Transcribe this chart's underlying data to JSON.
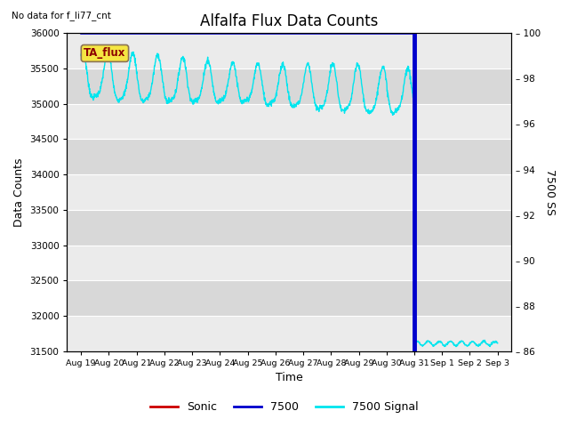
{
  "title": "Alfalfa Flux Data Counts",
  "top_left_text": "No data for f_li77_cnt",
  "ylabel_left": "Data Counts",
  "ylabel_right": "7500 SS",
  "xlabel": "Time",
  "annotation_box": "TA_flux",
  "ylim_left": [
    31500,
    36000
  ],
  "ylim_right": [
    86,
    100
  ],
  "yticks_left": [
    31500,
    32000,
    32500,
    33000,
    33500,
    34000,
    34500,
    35000,
    35500,
    36000
  ],
  "yticks_right": [
    86,
    88,
    90,
    92,
    94,
    96,
    98,
    100
  ],
  "plot_bg_color": "#e0e0e0",
  "line_7500_color": "#0000cc",
  "line_signal_color": "#00e5ee",
  "line_sonic_color": "#cc0000",
  "x_tick_labels": [
    "Aug 19",
    "Aug 20",
    "Aug 21",
    "Aug 22",
    "Aug 23",
    "Aug 24",
    "Aug 25",
    "Aug 26",
    "Aug 27",
    "Aug 28",
    "Aug 29",
    "Aug 30",
    "Aug 31",
    "Sep 1",
    "Sep 2",
    "Sep 3"
  ],
  "legend_entries": [
    "Sonic",
    "7500",
    "7500 Signal"
  ],
  "figsize": [
    6.4,
    4.8
  ],
  "dpi": 100
}
